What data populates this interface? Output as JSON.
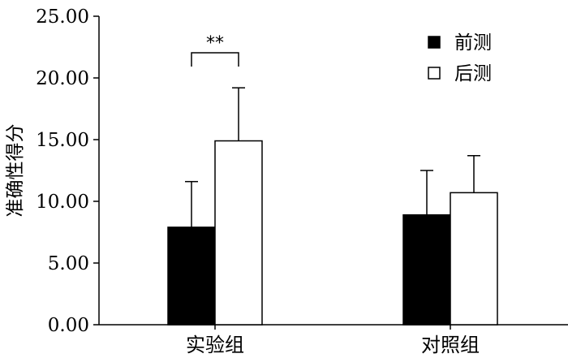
{
  "chart_data": {
    "type": "bar",
    "ylabel": "准确性得分",
    "xlabel": "",
    "ylim": [
      0,
      25
    ],
    "yticks": [
      "0.00",
      "5.00",
      "10.00",
      "15.00",
      "20.00",
      "25.00"
    ],
    "categories": [
      "实验组",
      "对照组"
    ],
    "series": [
      {
        "name": "前测",
        "fill": "#000000",
        "values": [
          7.9,
          8.9
        ],
        "errors": [
          3.7,
          3.6
        ]
      },
      {
        "name": "后测",
        "fill": "#ffffff",
        "values": [
          14.9,
          10.7
        ],
        "errors": [
          4.3,
          3.0
        ]
      }
    ],
    "legend": {
      "position": "top-right"
    },
    "annotation": {
      "text": "**",
      "category": "实验组"
    },
    "grid": false
  }
}
